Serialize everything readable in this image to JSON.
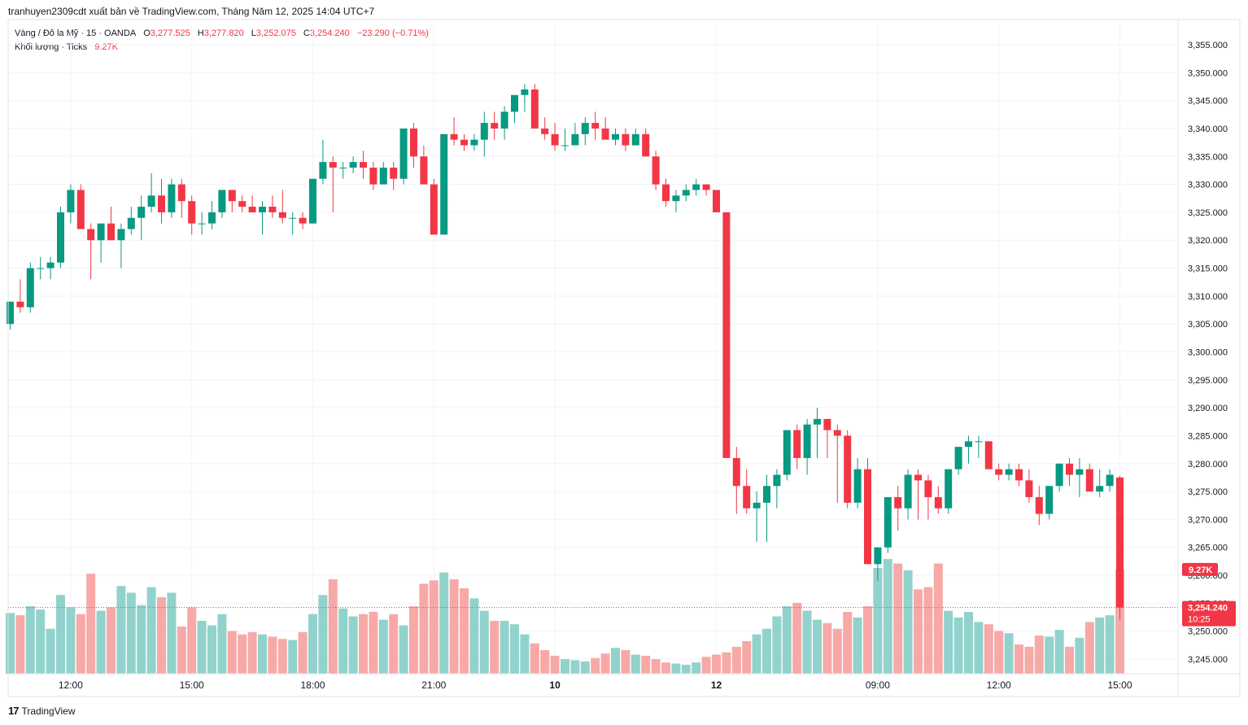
{
  "header": {
    "attribution": "tranhuyen2309cdt xuất bản về TradingView.com, Tháng Năm 12, 2025 14:04 UTC+7"
  },
  "legend": {
    "symbol": "Vàng / Đô la Mỹ · 15 · OANDA",
    "o_label": "O",
    "open": "3,277.525",
    "h_label": "H",
    "high": "3,277.820",
    "l_label": "L",
    "low": "3,252.075",
    "c_label": "C",
    "close": "3,254.240",
    "change": "−23.290 (−0.71%)",
    "volume_label": "Khối lượng · Ticks",
    "volume_value": "9.27K"
  },
  "footer": {
    "brand": "TradingView",
    "logo": "17"
  },
  "colors": {
    "up": "#089981",
    "down": "#f23645",
    "vol_up": "#92d2cc",
    "vol_down": "#f7a9a7",
    "grid": "#f0f3fa",
    "axis_text": "#131722"
  },
  "chart_data": {
    "type": "candlestick",
    "symbol": "XAU/USD",
    "interval": "15",
    "y_ticks": [
      "3,245.000",
      "3,250.000",
      "3,255.000",
      "3,260.000",
      "3,265.000",
      "3,270.000",
      "3,275.000",
      "3,280.000",
      "3,285.000",
      "3,290.000",
      "3,295.000",
      "3,300.000",
      "3,305.000",
      "3,310.000",
      "3,315.000",
      "3,320.000",
      "3,325.000",
      "3,330.000",
      "3,335.000",
      "3,340.000",
      "3,345.000",
      "3,350.000",
      "3,355.000"
    ],
    "x_ticks": [
      {
        "label": "12:00",
        "index": 6
      },
      {
        "label": "15:00",
        "index": 18
      },
      {
        "label": "18:00",
        "index": 30
      },
      {
        "label": "21:00",
        "index": 42
      },
      {
        "label": "10",
        "index": 54
      },
      {
        "label": "12",
        "index": 70
      },
      {
        "label": "09:00",
        "index": 86
      },
      {
        "label": "12:00",
        "index": 98
      },
      {
        "label": "15:00",
        "index": 110
      }
    ],
    "price_label": "3,254.240",
    "countdown": "10:25",
    "volume_label": "9.27K",
    "last_volume": 9270,
    "candles": [
      {
        "o": 3305,
        "h": 3309,
        "l": 3304,
        "c": 3309,
        "v": 5400
      },
      {
        "o": 3309,
        "h": 3313,
        "l": 3307,
        "c": 3308,
        "v": 5200
      },
      {
        "o": 3308,
        "h": 3316,
        "l": 3307,
        "c": 3315,
        "v": 6000
      },
      {
        "o": 3315,
        "h": 3317,
        "l": 3313,
        "c": 3315,
        "v": 5700
      },
      {
        "o": 3315,
        "h": 3317,
        "l": 3313,
        "c": 3316,
        "v": 4000
      },
      {
        "o": 3316,
        "h": 3326,
        "l": 3315,
        "c": 3325,
        "v": 7000
      },
      {
        "o": 3325,
        "h": 3330,
        "l": 3323,
        "c": 3329,
        "v": 5900
      },
      {
        "o": 3329,
        "h": 3330,
        "l": 3322,
        "c": 3322,
        "v": 5300
      },
      {
        "o": 3322,
        "h": 3323,
        "l": 3313,
        "c": 3320,
        "v": 8900
      },
      {
        "o": 3320,
        "h": 3323,
        "l": 3316,
        "c": 3323,
        "v": 5600
      },
      {
        "o": 3323,
        "h": 3326,
        "l": 3320,
        "c": 3320,
        "v": 5900
      },
      {
        "o": 3320,
        "h": 3323,
        "l": 3315,
        "c": 3322,
        "v": 7800
      },
      {
        "o": 3322,
        "h": 3326,
        "l": 3321,
        "c": 3324,
        "v": 7200
      },
      {
        "o": 3324,
        "h": 3328,
        "l": 3320,
        "c": 3326,
        "v": 6100
      },
      {
        "o": 3326,
        "h": 3332,
        "l": 3325,
        "c": 3328,
        "v": 7700
      },
      {
        "o": 3328,
        "h": 3331,
        "l": 3323,
        "c": 3325,
        "v": 6800
      },
      {
        "o": 3325,
        "h": 3331,
        "l": 3324,
        "c": 3330,
        "v": 7200
      },
      {
        "o": 3330,
        "h": 3331,
        "l": 3324,
        "c": 3327,
        "v": 4200
      },
      {
        "o": 3327,
        "h": 3328,
        "l": 3321,
        "c": 3323,
        "v": 5900
      },
      {
        "o": 3323,
        "h": 3325,
        "l": 3321,
        "c": 3323,
        "v": 4700
      },
      {
        "o": 3323,
        "h": 3327,
        "l": 3322,
        "c": 3325,
        "v": 4300
      },
      {
        "o": 3325,
        "h": 3329,
        "l": 3324,
        "c": 3329,
        "v": 5300
      },
      {
        "o": 3329,
        "h": 3329,
        "l": 3325,
        "c": 3327,
        "v": 3800
      },
      {
        "o": 3327,
        "h": 3328,
        "l": 3325,
        "c": 3326,
        "v": 3500
      },
      {
        "o": 3326,
        "h": 3328,
        "l": 3325,
        "c": 3325,
        "v": 3700
      },
      {
        "o": 3325,
        "h": 3327,
        "l": 3321,
        "c": 3326,
        "v": 3500
      },
      {
        "o": 3326,
        "h": 3328,
        "l": 3324,
        "c": 3325,
        "v": 3300
      },
      {
        "o": 3325,
        "h": 3329,
        "l": 3323,
        "c": 3324,
        "v": 3100
      },
      {
        "o": 3324,
        "h": 3325,
        "l": 3321,
        "c": 3324,
        "v": 3000
      },
      {
        "o": 3324,
        "h": 3325,
        "l": 3322,
        "c": 3323,
        "v": 3700
      },
      {
        "o": 3323,
        "h": 3331,
        "l": 3323,
        "c": 3331,
        "v": 5300
      },
      {
        "o": 3331,
        "h": 3338,
        "l": 3330,
        "c": 3334,
        "v": 7000
      },
      {
        "o": 3334,
        "h": 3335,
        "l": 3325,
        "c": 3333,
        "v": 8400
      },
      {
        "o": 3333,
        "h": 3334,
        "l": 3331,
        "c": 3333,
        "v": 5800
      },
      {
        "o": 3333,
        "h": 3335,
        "l": 3332,
        "c": 3334,
        "v": 5100
      },
      {
        "o": 3334,
        "h": 3336,
        "l": 3331,
        "c": 3333,
        "v": 5300
      },
      {
        "o": 3333,
        "h": 3334,
        "l": 3329,
        "c": 3330,
        "v": 5500
      },
      {
        "o": 3330,
        "h": 3334,
        "l": 3330,
        "c": 3333,
        "v": 4800
      },
      {
        "o": 3333,
        "h": 3334,
        "l": 3329,
        "c": 3331,
        "v": 5300
      },
      {
        "o": 3331,
        "h": 3340,
        "l": 3330,
        "c": 3340,
        "v": 4300
      },
      {
        "o": 3340,
        "h": 3341,
        "l": 3333,
        "c": 3335,
        "v": 6000
      },
      {
        "o": 3335,
        "h": 3337,
        "l": 3330,
        "c": 3330,
        "v": 8000
      },
      {
        "o": 3330,
        "h": 3331,
        "l": 3321,
        "c": 3321,
        "v": 8300
      },
      {
        "o": 3321,
        "h": 3339,
        "l": 3321,
        "c": 3339,
        "v": 9000
      },
      {
        "o": 3339,
        "h": 3342,
        "l": 3337,
        "c": 3338,
        "v": 8400
      },
      {
        "o": 3338,
        "h": 3339,
        "l": 3336,
        "c": 3337,
        "v": 7600
      },
      {
        "o": 3337,
        "h": 3339,
        "l": 3336,
        "c": 3338,
        "v": 6700
      },
      {
        "o": 3338,
        "h": 3343,
        "l": 3335,
        "c": 3341,
        "v": 5600
      },
      {
        "o": 3341,
        "h": 3343,
        "l": 3338,
        "c": 3340,
        "v": 4700
      },
      {
        "o": 3340,
        "h": 3344,
        "l": 3338,
        "c": 3343,
        "v": 4700
      },
      {
        "o": 3343,
        "h": 3346,
        "l": 3341,
        "c": 3346,
        "v": 4400
      },
      {
        "o": 3346,
        "h": 3348,
        "l": 3343,
        "c": 3347,
        "v": 3500
      },
      {
        "o": 3347,
        "h": 3348,
        "l": 3340,
        "c": 3340,
        "v": 2700
      },
      {
        "o": 3340,
        "h": 3342,
        "l": 3338,
        "c": 3339,
        "v": 2100
      },
      {
        "o": 3339,
        "h": 3341,
        "l": 3336,
        "c": 3337,
        "v": 1600
      },
      {
        "o": 3337,
        "h": 3340,
        "l": 3336,
        "c": 3337,
        "v": 1300
      },
      {
        "o": 3337,
        "h": 3341,
        "l": 3337,
        "c": 3339,
        "v": 1200
      },
      {
        "o": 3339,
        "h": 3342,
        "l": 3337,
        "c": 3341,
        "v": 1100
      },
      {
        "o": 3341,
        "h": 3343,
        "l": 3338,
        "c": 3340,
        "v": 1400
      },
      {
        "o": 3340,
        "h": 3342,
        "l": 3338,
        "c": 3338,
        "v": 1800
      },
      {
        "o": 3338,
        "h": 3340,
        "l": 3337,
        "c": 3339,
        "v": 2300
      },
      {
        "o": 3339,
        "h": 3340,
        "l": 3336,
        "c": 3337,
        "v": 2100
      },
      {
        "o": 3337,
        "h": 3340,
        "l": 3337,
        "c": 3339,
        "v": 1700
      },
      {
        "o": 3339,
        "h": 3340,
        "l": 3335,
        "c": 3335,
        "v": 1600
      },
      {
        "o": 3335,
        "h": 3336,
        "l": 3329,
        "c": 3330,
        "v": 1300
      },
      {
        "o": 3330,
        "h": 3331,
        "l": 3326,
        "c": 3327,
        "v": 1000
      },
      {
        "o": 3327,
        "h": 3329,
        "l": 3325,
        "c": 3328,
        "v": 900
      },
      {
        "o": 3328,
        "h": 3330,
        "l": 3327,
        "c": 3329,
        "v": 800
      },
      {
        "o": 3329,
        "h": 3331,
        "l": 3328,
        "c": 3330,
        "v": 1000
      },
      {
        "o": 3330,
        "h": 3330,
        "l": 3328,
        "c": 3329,
        "v": 1500
      },
      {
        "o": 3329,
        "h": 3329,
        "l": 3325,
        "c": 3325,
        "v": 1700
      },
      {
        "o": 3325,
        "h": 3325,
        "l": 3281,
        "c": 3281,
        "v": 1900
      },
      {
        "o": 3281,
        "h": 3283,
        "l": 3271,
        "c": 3276,
        "v": 2400
      },
      {
        "o": 3276,
        "h": 3279,
        "l": 3271,
        "c": 3272,
        "v": 2900
      },
      {
        "o": 3272,
        "h": 3275,
        "l": 3266,
        "c": 3273,
        "v": 3500
      },
      {
        "o": 3273,
        "h": 3278,
        "l": 3266,
        "c": 3276,
        "v": 4000
      },
      {
        "o": 3276,
        "h": 3279,
        "l": 3272,
        "c": 3278,
        "v": 5100
      },
      {
        "o": 3278,
        "h": 3286,
        "l": 3277,
        "c": 3286,
        "v": 6000
      },
      {
        "o": 3286,
        "h": 3287,
        "l": 3279,
        "c": 3281,
        "v": 6300
      },
      {
        "o": 3281,
        "h": 3288,
        "l": 3278,
        "c": 3287,
        "v": 5600
      },
      {
        "o": 3287,
        "h": 3290,
        "l": 3281,
        "c": 3288,
        "v": 4800
      },
      {
        "o": 3288,
        "h": 3288,
        "l": 3281,
        "c": 3286,
        "v": 4500
      },
      {
        "o": 3286,
        "h": 3287,
        "l": 3273,
        "c": 3285,
        "v": 4000
      },
      {
        "o": 3285,
        "h": 3286,
        "l": 3272,
        "c": 3273,
        "v": 5500
      },
      {
        "o": 3273,
        "h": 3281,
        "l": 3272,
        "c": 3279,
        "v": 5000
      },
      {
        "o": 3279,
        "h": 3281,
        "l": 3262,
        "c": 3262,
        "v": 6000
      },
      {
        "o": 3262,
        "h": 3265,
        "l": 3259,
        "c": 3265,
        "v": 9400
      },
      {
        "o": 3265,
        "h": 3274,
        "l": 3264,
        "c": 3274,
        "v": 10200
      },
      {
        "o": 3274,
        "h": 3276,
        "l": 3268,
        "c": 3272,
        "v": 9800
      },
      {
        "o": 3272,
        "h": 3279,
        "l": 3270,
        "c": 3278,
        "v": 9200
      },
      {
        "o": 3278,
        "h": 3279,
        "l": 3270,
        "c": 3277,
        "v": 7500
      },
      {
        "o": 3277,
        "h": 3278,
        "l": 3270,
        "c": 3274,
        "v": 7700
      },
      {
        "o": 3274,
        "h": 3276,
        "l": 3271,
        "c": 3272,
        "v": 9800
      },
      {
        "o": 3272,
        "h": 3279,
        "l": 3271,
        "c": 3279,
        "v": 5600
      },
      {
        "o": 3279,
        "h": 3283,
        "l": 3278,
        "c": 3283,
        "v": 5000
      },
      {
        "o": 3283,
        "h": 3285,
        "l": 3280,
        "c": 3284,
        "v": 5500
      },
      {
        "o": 3284,
        "h": 3285,
        "l": 3281,
        "c": 3284,
        "v": 4600
      },
      {
        "o": 3284,
        "h": 3284,
        "l": 3279,
        "c": 3279,
        "v": 4400
      },
      {
        "o": 3279,
        "h": 3280,
        "l": 3277,
        "c": 3278,
        "v": 3800
      },
      {
        "o": 3278,
        "h": 3280,
        "l": 3277,
        "c": 3279,
        "v": 3600
      },
      {
        "o": 3279,
        "h": 3280,
        "l": 3276,
        "c": 3277,
        "v": 2600
      },
      {
        "o": 3277,
        "h": 3279,
        "l": 3273,
        "c": 3274,
        "v": 2400
      },
      {
        "o": 3274,
        "h": 3276,
        "l": 3269,
        "c": 3271,
        "v": 3400
      },
      {
        "o": 3271,
        "h": 3276,
        "l": 3270,
        "c": 3276,
        "v": 3300
      },
      {
        "o": 3276,
        "h": 3280,
        "l": 3275,
        "c": 3280,
        "v": 3900
      },
      {
        "o": 3280,
        "h": 3281,
        "l": 3276,
        "c": 3278,
        "v": 2400
      },
      {
        "o": 3278,
        "h": 3281,
        "l": 3274,
        "c": 3279,
        "v": 3200
      },
      {
        "o": 3279,
        "h": 3280,
        "l": 3275,
        "c": 3275,
        "v": 4600
      },
      {
        "o": 3275,
        "h": 3279,
        "l": 3274,
        "c": 3276,
        "v": 5000
      },
      {
        "o": 3276,
        "h": 3279,
        "l": 3275,
        "c": 3278,
        "v": 5200
      },
      {
        "o": 3277.525,
        "h": 3277.82,
        "l": 3252.075,
        "c": 3254.24,
        "v": 9270
      }
    ]
  }
}
